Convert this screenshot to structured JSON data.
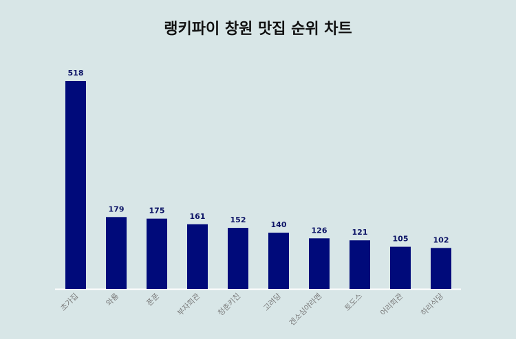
{
  "chart_data": {
    "type": "bar",
    "title": "랭키파이 창원 맛집 순위 차트",
    "categories": [
      "초가집",
      "와룡",
      "푼푼",
      "부자회관",
      "청춘키친",
      "고려당",
      "겐소심야라멘",
      "토도스",
      "어리회관",
      "하리식당"
    ],
    "values": [
      518,
      179,
      175,
      161,
      152,
      140,
      126,
      121,
      105,
      102
    ],
    "xlabel": "",
    "ylabel": "",
    "ylim": [
      0,
      518
    ],
    "grid": false,
    "legend": "none",
    "colors": {
      "bar": "#000a7a",
      "background": "#d8e6e7",
      "value_label": "#0d1466",
      "category_label": "#7a7a7a",
      "baseline": "#ffffff"
    }
  }
}
